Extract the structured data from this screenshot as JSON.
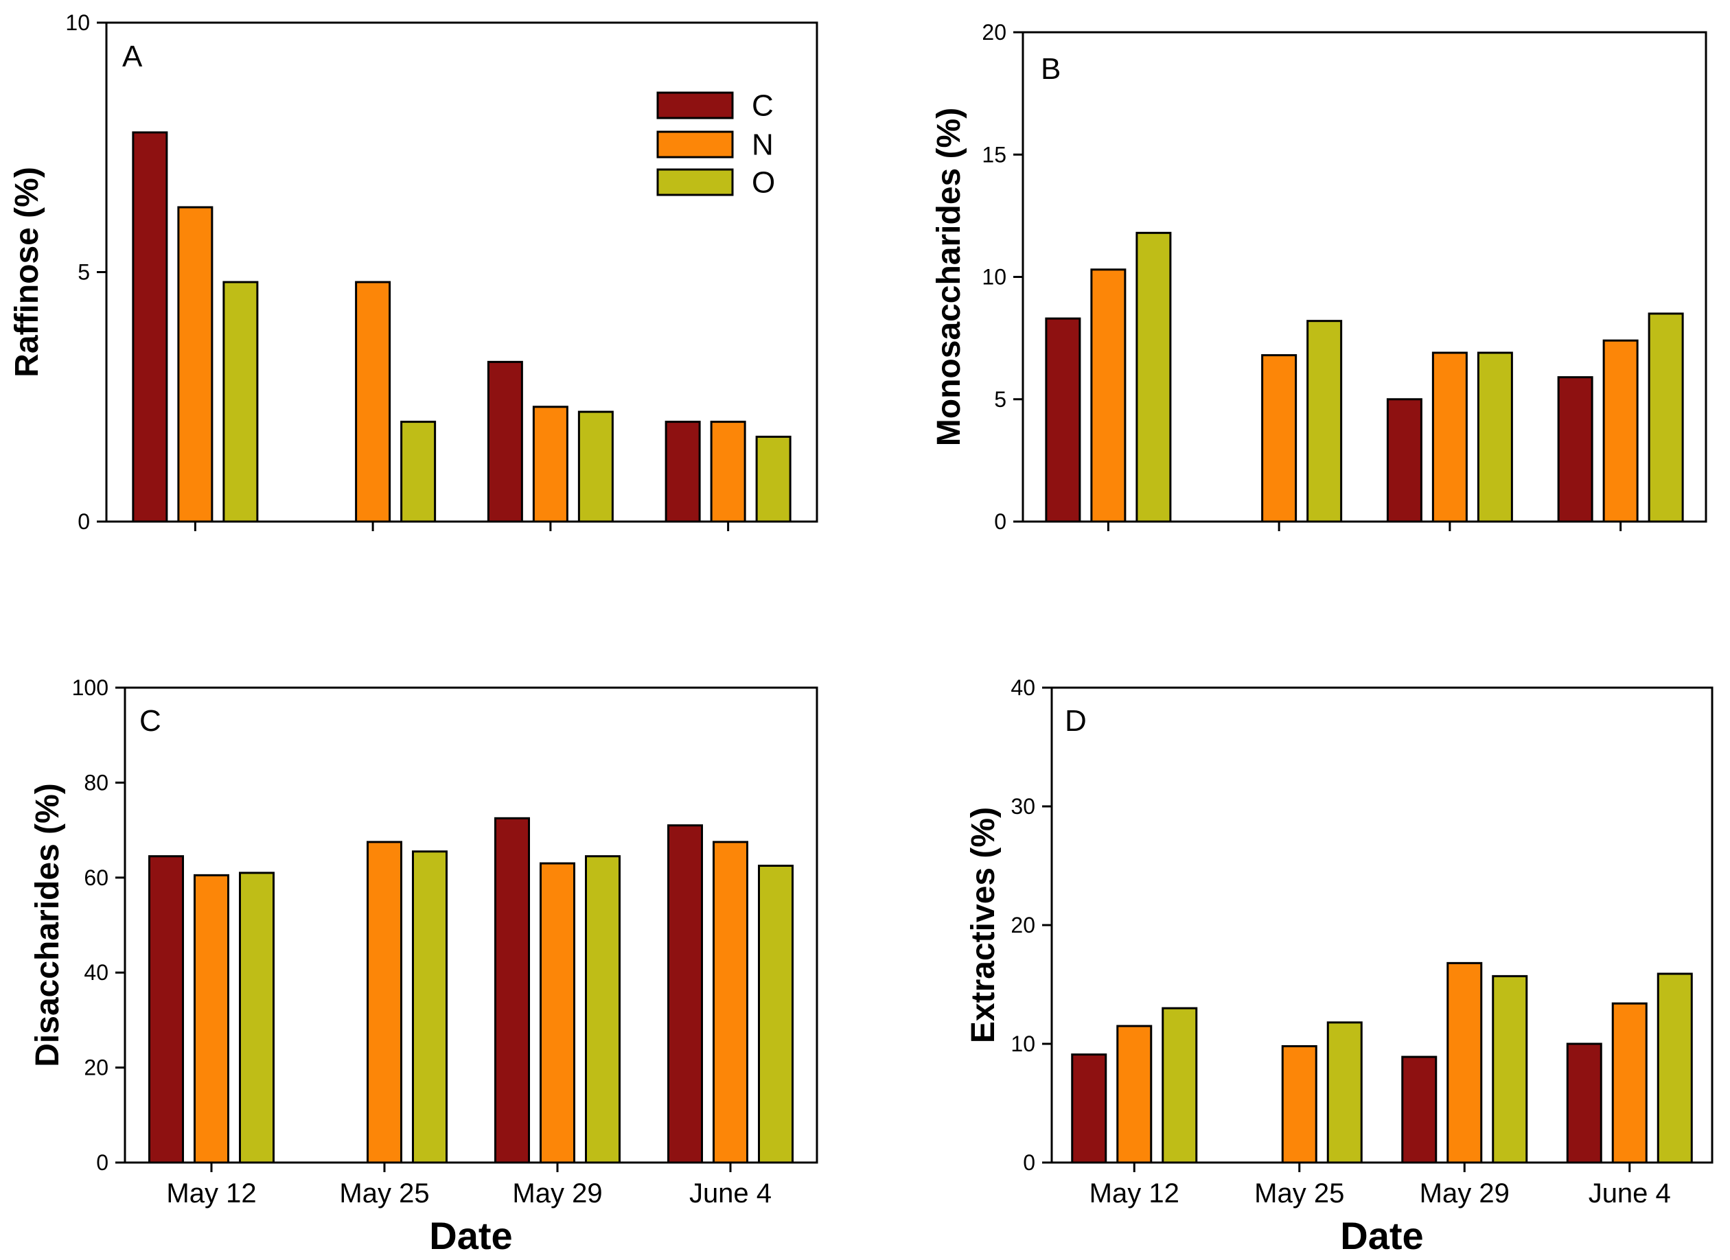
{
  "figure": {
    "background": "#ffffff",
    "axis_color": "#000000",
    "xlabel": "Date",
    "x_tick_labels": [
      "May 12",
      "May 25",
      "May 29",
      "June 4"
    ],
    "panel_letters": [
      "A",
      "B",
      "C",
      "D"
    ],
    "legend": {
      "position": "upper-right of panel A",
      "entries": [
        {
          "label": "C",
          "color": "#8e1111"
        },
        {
          "label": "N",
          "color": "#fc8608"
        },
        {
          "label": "O",
          "color": "#bfbd17"
        }
      ]
    }
  },
  "chart_data": [
    {
      "type": "bar",
      "panel_letter": "A",
      "title": "",
      "ylabel": "Raffinose (%)",
      "xlabel": "",
      "categories": [
        "May 12",
        "May 25",
        "May 29",
        "June 4"
      ],
      "ylim": [
        0,
        10
      ],
      "yticks": [
        0,
        5,
        10
      ],
      "grid": false,
      "x_tick_labels_visible": false,
      "legend_visible": true,
      "series": [
        {
          "name": "C",
          "color": "#8e1111",
          "values": [
            7.8,
            null,
            3.2,
            2.0
          ]
        },
        {
          "name": "N",
          "color": "#fc8608",
          "values": [
            6.3,
            4.8,
            2.3,
            2.0
          ]
        },
        {
          "name": "O",
          "color": "#bfbd17",
          "values": [
            4.8,
            2.0,
            2.2,
            1.7
          ]
        }
      ]
    },
    {
      "type": "bar",
      "panel_letter": "B",
      "title": "",
      "ylabel": "Monosaccharides (%)",
      "xlabel": "",
      "categories": [
        "May 12",
        "May 25",
        "May 29",
        "June 4"
      ],
      "ylim": [
        0,
        20
      ],
      "yticks": [
        0,
        5,
        10,
        15,
        20
      ],
      "grid": false,
      "x_tick_labels_visible": false,
      "legend_visible": false,
      "series": [
        {
          "name": "C",
          "color": "#8e1111",
          "values": [
            8.3,
            null,
            5.0,
            5.9
          ]
        },
        {
          "name": "N",
          "color": "#fc8608",
          "values": [
            10.3,
            6.8,
            6.9,
            7.4
          ]
        },
        {
          "name": "O",
          "color": "#bfbd17",
          "values": [
            11.8,
            8.2,
            6.9,
            8.5
          ]
        }
      ]
    },
    {
      "type": "bar",
      "panel_letter": "C",
      "title": "",
      "ylabel": "Disaccharides (%)",
      "xlabel": "Date",
      "categories": [
        "May 12",
        "May 25",
        "May 29",
        "June 4"
      ],
      "ylim": [
        0,
        100
      ],
      "yticks": [
        0,
        20,
        40,
        60,
        80,
        100
      ],
      "grid": false,
      "x_tick_labels_visible": true,
      "legend_visible": false,
      "series": [
        {
          "name": "C",
          "color": "#8e1111",
          "values": [
            64.5,
            null,
            72.5,
            71.0
          ]
        },
        {
          "name": "N",
          "color": "#fc8608",
          "values": [
            60.5,
            67.5,
            63.0,
            67.5
          ]
        },
        {
          "name": "O",
          "color": "#bfbd17",
          "values": [
            61.0,
            65.5,
            64.5,
            62.5
          ]
        }
      ]
    },
    {
      "type": "bar",
      "panel_letter": "D",
      "title": "",
      "ylabel": "Extractives (%)",
      "xlabel": "Date",
      "categories": [
        "May 12",
        "May 25",
        "May 29",
        "June 4"
      ],
      "ylim": [
        0,
        40
      ],
      "yticks": [
        0,
        10,
        20,
        30,
        40
      ],
      "grid": false,
      "x_tick_labels_visible": true,
      "legend_visible": false,
      "series": [
        {
          "name": "C",
          "color": "#8e1111",
          "values": [
            9.1,
            null,
            8.9,
            10.0
          ]
        },
        {
          "name": "N",
          "color": "#fc8608",
          "values": [
            11.5,
            9.8,
            16.8,
            13.4
          ]
        },
        {
          "name": "O",
          "color": "#bfbd17",
          "values": [
            13.0,
            11.8,
            15.7,
            15.9
          ]
        }
      ]
    }
  ]
}
